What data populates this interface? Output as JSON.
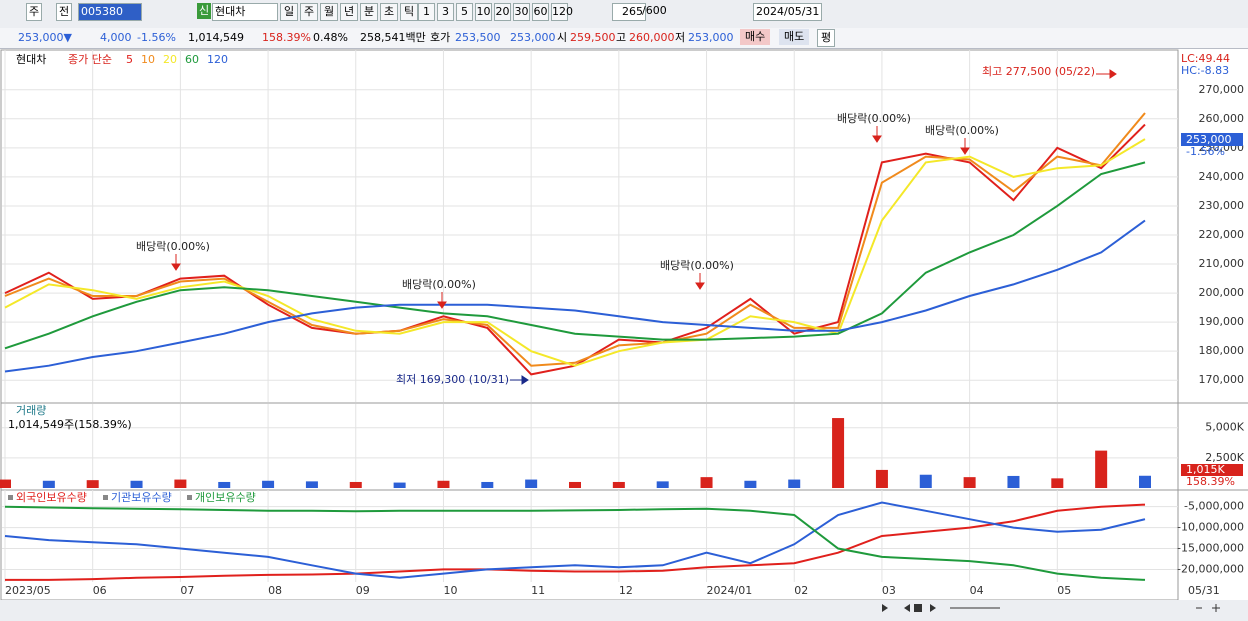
{
  "toolbar": {
    "mode": "주",
    "prev": "전",
    "code": "005380",
    "new_badge": "신",
    "name": "현대차",
    "periods": [
      "일",
      "주",
      "월",
      "년",
      "분",
      "초",
      "틱"
    ],
    "minutes": [
      "1",
      "3",
      "5",
      "10",
      "20",
      "30",
      "60",
      "120"
    ],
    "count": "265",
    "total": "/600",
    "date": "2024/05/31"
  },
  "quote": {
    "price": "253,000▼",
    "change": "4,000",
    "rate": "-1.56%",
    "volume": "1,014,549",
    "vol_ratio": "158.39%",
    "turnover": "0.48%",
    "amount": "258,541백만",
    "ask_label": "호가",
    "ask": "253,500",
    "bid": "253,000",
    "open_label": "시",
    "open": "259,500",
    "high_label": "고",
    "high": "260,000",
    "low_label": "저",
    "low": "253,000",
    "buy": "매수",
    "sell": "매도",
    "eval": "평"
  },
  "chart_data": [
    {
      "type": "line",
      "title": "현대차",
      "legend_title": "종가 단순",
      "lc": "LC:49.44",
      "hc": "HC:-8.83",
      "last_label": "253,000",
      "last_rate": "-1.56%",
      "categories": [
        "2023/05",
        null,
        "06",
        null,
        "07",
        null,
        "08",
        null,
        "09",
        null,
        "10",
        null,
        "11",
        null,
        "12",
        null,
        "2024/01",
        null,
        "02",
        null,
        "03",
        null,
        "04",
        null,
        "05",
        null,
        "05/31"
      ],
      "series": [
        {
          "name": "5",
          "color": "#e0201c",
          "values": [
            200000,
            207000,
            198000,
            199000,
            205000,
            206000,
            196000,
            188000,
            186000,
            187000,
            192000,
            188000,
            172000,
            175000,
            184000,
            183000,
            188000,
            198000,
            186000,
            190000,
            245000,
            248000,
            245000,
            232000,
            250000,
            243000,
            258000
          ]
        },
        {
          "name": "10",
          "color": "#f08a1c",
          "values": [
            199000,
            205000,
            199000,
            199000,
            204000,
            205000,
            197000,
            189000,
            186000,
            187000,
            191000,
            189000,
            175000,
            176000,
            182000,
            183000,
            186000,
            196000,
            188000,
            188000,
            238000,
            247000,
            246000,
            235000,
            247000,
            244000,
            262000
          ]
        },
        {
          "name": "20",
          "color": "#f4e829",
          "values": [
            195000,
            203000,
            201000,
            198000,
            202000,
            204000,
            199000,
            191000,
            187000,
            186000,
            190000,
            190000,
            180000,
            175000,
            180000,
            183000,
            184000,
            192000,
            190000,
            186000,
            225000,
            245000,
            247000,
            240000,
            243000,
            244000,
            253000
          ]
        },
        {
          "name": "60",
          "color": "#1f9a3c",
          "values": [
            181000,
            186000,
            192000,
            197000,
            201000,
            202000,
            201000,
            199000,
            197000,
            195000,
            193000,
            192000,
            189000,
            186000,
            185000,
            184000,
            184000,
            184500,
            185000,
            186000,
            193000,
            207000,
            214000,
            220000,
            230000,
            241000,
            245000
          ]
        },
        {
          "name": "120",
          "color": "#2c5fd6",
          "values": [
            173000,
            175000,
            178000,
            180000,
            183000,
            186000,
            190000,
            193000,
            195000,
            196000,
            196000,
            196000,
            195000,
            194000,
            192000,
            190000,
            189000,
            188000,
            187000,
            187000,
            190000,
            194000,
            199000,
            203000,
            208000,
            214000,
            225000
          ]
        }
      ],
      "annotations": {
        "high": "최고 277,500 (05/22)",
        "low": "최저 169,300 (10/31)",
        "ex_dividend": [
          "배당락(0.00%)",
          "배당락(0.00%)",
          "배당락(0.00%)",
          "배당락(0.00%)",
          "배당락(0.00%)"
        ]
      },
      "ylim": [
        162500,
        283000
      ],
      "yticks": [
        {
          "value": 170000,
          "label": "170,000"
        },
        {
          "value": 180000,
          "label": "180,000"
        },
        {
          "value": 190000,
          "label": "190,000"
        },
        {
          "value": 200000,
          "label": "200,000"
        },
        {
          "value": 210000,
          "label": "210,000"
        },
        {
          "value": 220000,
          "label": "220,000"
        },
        {
          "value": 230000,
          "label": "230,000"
        },
        {
          "value": 240000,
          "label": "240,000"
        },
        {
          "value": 250000,
          "label": "250,000"
        },
        {
          "value": 260000,
          "label": "260,000"
        },
        {
          "value": 270000,
          "label": "270,000"
        }
      ],
      "grid": true
    },
    {
      "type": "bar",
      "title": "거래량",
      "subtitle": "1,014,549주(158.39%)",
      "last_label": "1,015K",
      "last_rate": "158.39%",
      "values": [
        700,
        600,
        650,
        600,
        700,
        500,
        600,
        550,
        500,
        450,
        600,
        500,
        700,
        500,
        500,
        550,
        900,
        600,
        700,
        5800,
        1500,
        1100,
        900,
        1000,
        800,
        3100,
        1015
      ],
      "colors": [
        "#d8231c",
        "#2c5fd6",
        "#d8231c",
        "#2c5fd6",
        "#d8231c",
        "#2c5fd6",
        "#2c5fd6",
        "#2c5fd6",
        "#d8231c",
        "#2c5fd6",
        "#d8231c",
        "#2c5fd6",
        "#2c5fd6",
        "#d8231c",
        "#d8231c",
        "#2c5fd6",
        "#d8231c",
        "#2c5fd6",
        "#2c5fd6",
        "#d8231c",
        "#d8231c",
        "#2c5fd6",
        "#d8231c",
        "#2c5fd6",
        "#d8231c",
        "#d8231c",
        "#2c5fd6"
      ],
      "ylim": [
        0,
        6800
      ],
      "yticks": [
        {
          "value": 2500,
          "label": "2,500K"
        },
        {
          "value": 5000,
          "label": "5,000K"
        }
      ],
      "grid": true
    },
    {
      "type": "line",
      "series": [
        {
          "name": "외국인보유수량",
          "color": "#e0201c",
          "values": [
            -22500000,
            -22500000,
            -22300000,
            -22000000,
            -21800000,
            -21500000,
            -21300000,
            -21200000,
            -21000000,
            -20500000,
            -20000000,
            -20000000,
            -20300000,
            -20500000,
            -20500000,
            -20300000,
            -19500000,
            -19000000,
            -18500000,
            -16000000,
            -12000000,
            -11000000,
            -10000000,
            -8500000,
            -6000000,
            -5000000,
            -4500000
          ]
        },
        {
          "name": "기관보유수량",
          "color": "#2c5fd6",
          "values": [
            -12000000,
            -13000000,
            -13500000,
            -14000000,
            -15000000,
            -16000000,
            -17000000,
            -19000000,
            -21000000,
            -22000000,
            -21000000,
            -20000000,
            -19500000,
            -19000000,
            -19500000,
            -19000000,
            -16000000,
            -18500000,
            -14000000,
            -7000000,
            -4000000,
            -6000000,
            -8000000,
            -10000000,
            -11000000,
            -10500000,
            -8000000
          ]
        },
        {
          "name": "개인보유수량",
          "color": "#1f9a3c",
          "values": [
            -5000000,
            -5200000,
            -5400000,
            -5500000,
            -5600000,
            -5800000,
            -6000000,
            -6000000,
            -6100000,
            -6000000,
            -6000000,
            -6000000,
            -6000000,
            -5900000,
            -5800000,
            -5600000,
            -5500000,
            -6000000,
            -7000000,
            -15000000,
            -17000000,
            -17500000,
            -18000000,
            -19000000,
            -21000000,
            -22000000,
            -22500000
          ]
        }
      ],
      "ylim": [
        -23000000,
        -1500000
      ],
      "yticks": [
        {
          "value": -20000000,
          "label": "-20,000,000"
        },
        {
          "value": -15000000,
          "label": "-15,000,000"
        },
        {
          "value": -10000000,
          "label": "-10,000,000"
        },
        {
          "value": -5000000,
          "label": "-5,000,000"
        }
      ],
      "grid": true
    }
  ]
}
